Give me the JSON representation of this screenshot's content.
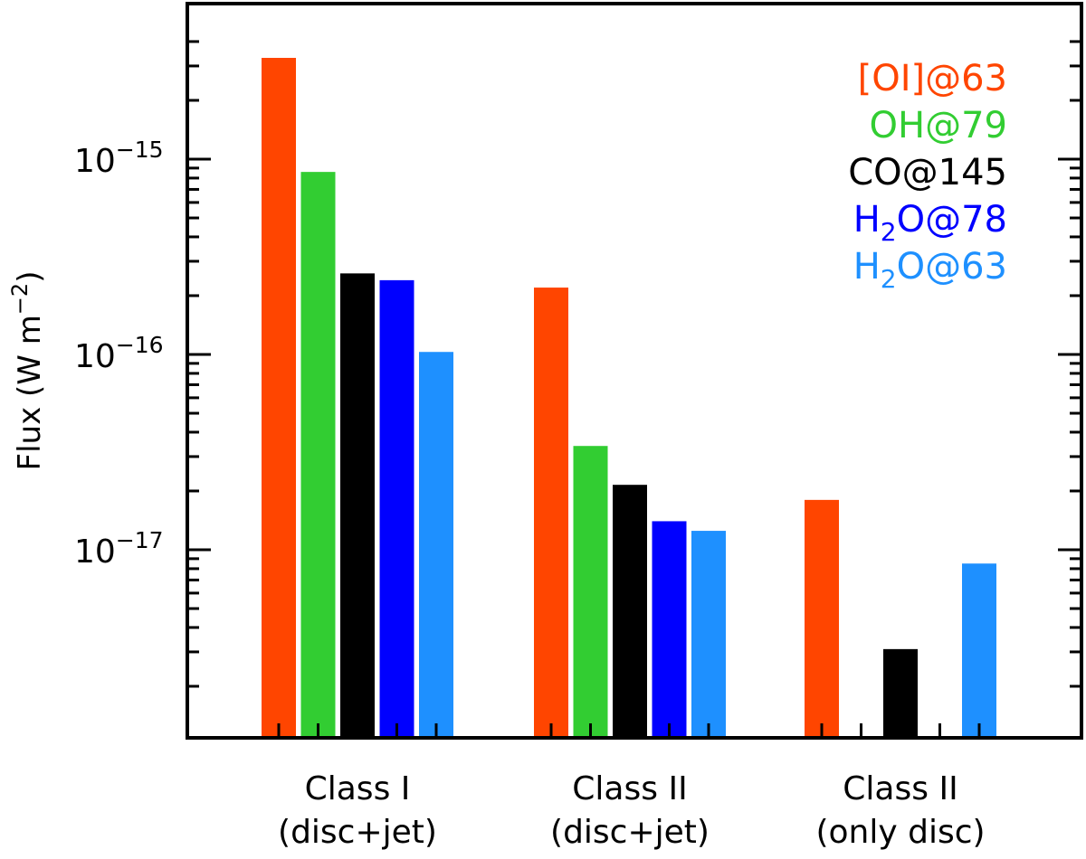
{
  "chart_data": {
    "type": "bar",
    "title": "",
    "ylabel_main": "Flux (W m",
    "ylabel_exp": "−2",
    "ylabel_close": ")",
    "yscale": "log",
    "ylim": [
      1.1e-18,
      5e-15
    ],
    "yticks": [
      {
        "value": 1e-15,
        "base": "10",
        "exp": "−15"
      },
      {
        "value": 1e-16,
        "base": "10",
        "exp": "−16"
      },
      {
        "value": 1e-17,
        "base": "10",
        "exp": "−17"
      }
    ],
    "groups": [
      {
        "line1": "Class I",
        "line2": "(disc+jet)"
      },
      {
        "line1": "Class II",
        "line2": "(disc+jet)"
      },
      {
        "line1": "Class II",
        "line2": "(only disc)"
      }
    ],
    "series": [
      {
        "name": "[OI]@63",
        "color": "#ff4500",
        "values": [
          3.3e-15,
          2.2e-16,
          1.8e-17
        ]
      },
      {
        "name": "OH@79",
        "color": "#32cd32",
        "values": [
          8.6e-16,
          3.4e-17,
          null
        ]
      },
      {
        "name": "CO@145",
        "color": "#000000",
        "values": [
          2.6e-16,
          2.15e-17,
          3.1e-18
        ]
      },
      {
        "name": "H2O@78",
        "label_main": "H",
        "label_sub": "2",
        "label_rest": "O@78",
        "color": "#0000ff",
        "values": [
          2.4e-16,
          1.4e-17,
          null
        ]
      },
      {
        "name": "H2O@63",
        "label_main": "H",
        "label_sub": "2",
        "label_rest": "O@63",
        "color": "#1e90ff",
        "values": [
          1.03e-16,
          1.25e-17,
          8.5e-18
        ]
      }
    ]
  }
}
